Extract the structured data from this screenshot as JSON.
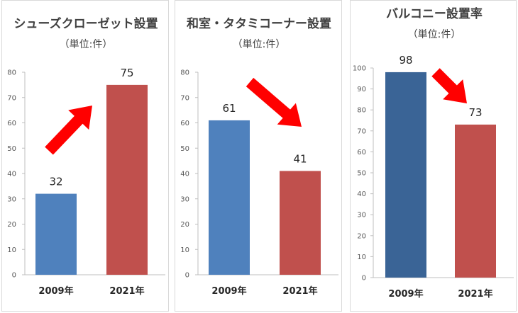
{
  "chart_data": [
    {
      "type": "bar",
      "title": "シューズクローゼット設置",
      "subtitle": "（単位:件）",
      "categories": [
        "2009年",
        "2021年"
      ],
      "values": [
        32,
        75
      ],
      "colors": [
        "#4f81bd",
        "#c0504d"
      ],
      "ylim": [
        0,
        80
      ],
      "yticks": [
        "0",
        "10",
        "20",
        "30",
        "40",
        "50",
        "60",
        "70",
        "80"
      ],
      "grid": false,
      "arrow": "up"
    },
    {
      "type": "bar",
      "title": "和室・タタミコーナー設置",
      "subtitle": "（単位:件）",
      "categories": [
        "2009年",
        "2021年"
      ],
      "values": [
        61,
        41
      ],
      "colors": [
        "#4f81bd",
        "#c0504d"
      ],
      "ylim": [
        0,
        80
      ],
      "yticks": [
        "0",
        "10",
        "20",
        "30",
        "40",
        "50",
        "60",
        "70",
        "80"
      ],
      "grid": false,
      "arrow": "down"
    },
    {
      "type": "bar",
      "title": "バルコニー設置率",
      "subtitle": "（単位:件）",
      "categories": [
        "2009年",
        "2021年"
      ],
      "values": [
        98,
        73
      ],
      "colors": [
        "#3a6496",
        "#c0504d"
      ],
      "ylim": [
        0,
        100
      ],
      "yticks": [
        "0",
        "10",
        "20",
        "30",
        "40",
        "50",
        "60",
        "70",
        "80",
        "90",
        "100"
      ],
      "grid": false,
      "arrow": "down"
    }
  ],
  "arrow_color": "#ff0000"
}
